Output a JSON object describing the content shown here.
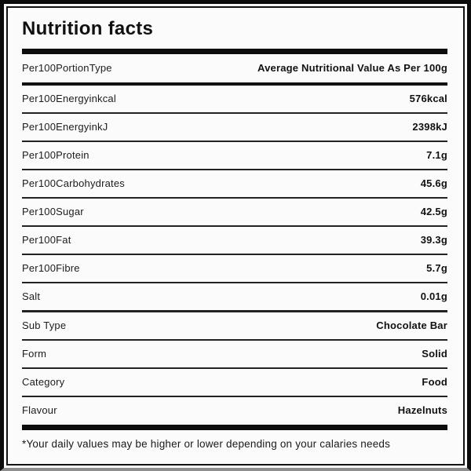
{
  "label": {
    "title": "Nutrition facts",
    "header": {
      "label": "Per100PortionType",
      "value": "Average Nutritional Value As Per 100g"
    },
    "nutrient_rows": [
      {
        "label": "Per100Energyinkcal",
        "value": "576kcal"
      },
      {
        "label": "Per100EnergyinkJ",
        "value": "2398kJ"
      },
      {
        "label": "Per100Protein",
        "value": "7.1g"
      },
      {
        "label": "Per100Carbohydrates",
        "value": "45.6g"
      },
      {
        "label": "Per100Sugar",
        "value": "42.5g"
      },
      {
        "label": "Per100Fat",
        "value": "39.3g"
      },
      {
        "label": "Per100Fibre",
        "value": "5.7g"
      },
      {
        "label": "Salt",
        "value": "0.01g"
      }
    ],
    "meta_rows": [
      {
        "label": "Sub Type",
        "value": "Chocolate Bar"
      },
      {
        "label": "Form",
        "value": "Solid"
      },
      {
        "label": "Category",
        "value": "Food"
      },
      {
        "label": "Flavour",
        "value": "Hazelnuts"
      }
    ],
    "footnote": "*Your daily values may be higher or lower depending on your calaries needs"
  },
  "colors": {
    "border": "#0c0c0c",
    "divider_thin": "#222222",
    "text": "#1c1c1c",
    "background": "#fbfbfb"
  }
}
